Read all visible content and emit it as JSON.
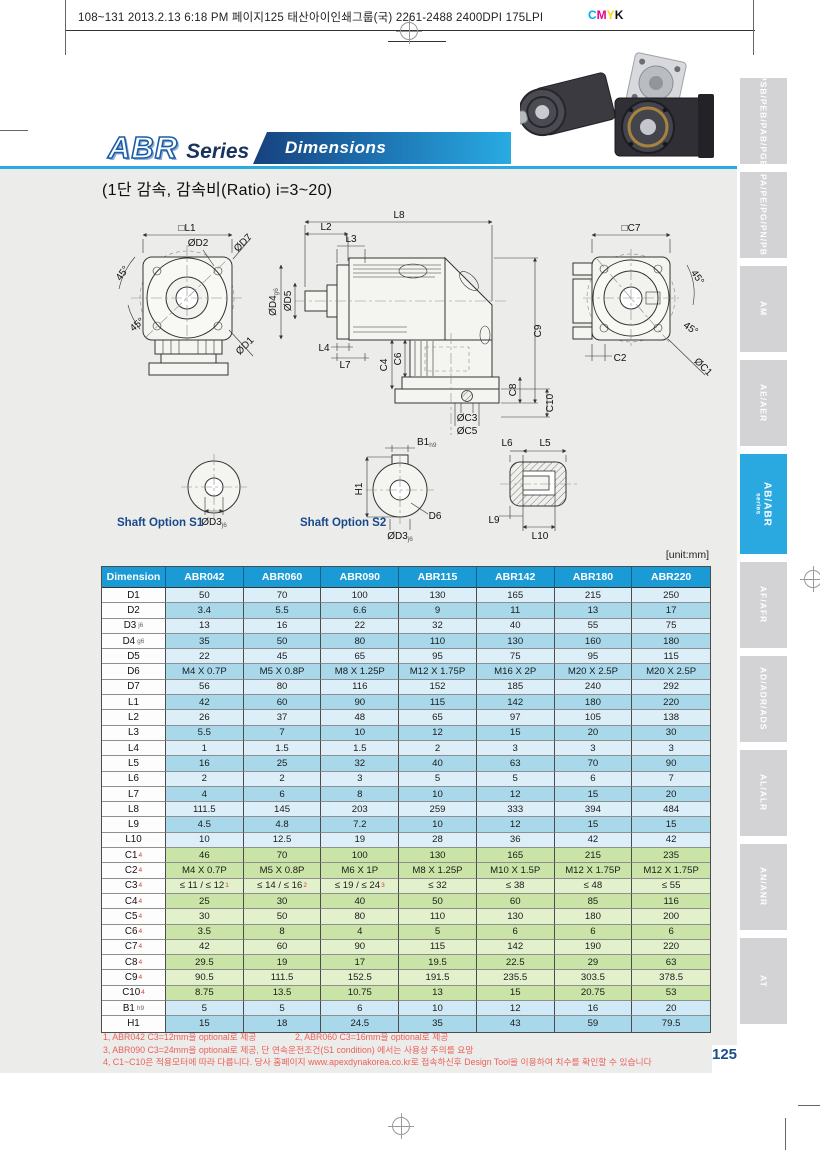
{
  "print_header": {
    "text": "108~131  2013.2.13 6:18 PM  페이지125   태산아이인쇄그룹(국) 2261-2488  2400DPI 175LPI",
    "cmyk": [
      "C",
      "M",
      "Y",
      "K"
    ]
  },
  "header": {
    "series_code": "ABR",
    "series_word": "Series",
    "banner_label": "Dimensions",
    "subtitle": "(1단 감속, 감속비(Ratio) i=3~20)"
  },
  "drawings": {
    "front": {
      "l1": "□L1",
      "d2": "ØD2",
      "d7": "ØD7",
      "d1": "ØD1",
      "angle1": "45°",
      "angle2": "45°"
    },
    "side": {
      "l8": "L8",
      "l2": "L2",
      "l3": "L3",
      "d4": "ØD4",
      "d4_tol": "g6",
      "d5": "ØD5",
      "l4": "L4",
      "l7": "L7",
      "c4": "C4",
      "c6": "C6",
      "c9": "C9",
      "c8": "C8",
      "c10": "C10",
      "c3": "ØC3",
      "c5": "ØC5"
    },
    "rear": {
      "c7": "□C7",
      "angle1": "45°",
      "angle2": "45°",
      "c1": "ØC1",
      "c2": "C2"
    },
    "shaft_s1": {
      "title": "Shaft Option S1",
      "d3": "ØD3",
      "d3_tol": "j6"
    },
    "shaft_s2": {
      "title": "Shaft Option S2",
      "b1": "B1",
      "b1_tol": "h9",
      "h1": "H1",
      "d6": "D6",
      "d3": "ØD3",
      "d3_tol": "j6"
    },
    "shaft_side": {
      "l6": "L6",
      "l5": "L5",
      "l9": "L9",
      "l10": "L10"
    }
  },
  "table": {
    "unit_note": "[unit:mm]",
    "columns": [
      "Dimension",
      "ABR042",
      "ABR060",
      "ABR090",
      "ABR115",
      "ABR142",
      "ABR180",
      "ABR220"
    ],
    "rows": [
      {
        "label": "D1",
        "tone": "bl",
        "values": [
          "50",
          "70",
          "100",
          "130",
          "165",
          "215",
          "250"
        ]
      },
      {
        "label": "D2",
        "tone": "bd",
        "values": [
          "3.4",
          "5.5",
          "6.6",
          "9",
          "11",
          "13",
          "17"
        ]
      },
      {
        "label": "D3",
        "label_sub": "j6",
        "tone": "bl",
        "values": [
          "13",
          "16",
          "22",
          "32",
          "40",
          "55",
          "75"
        ]
      },
      {
        "label": "D4",
        "label_sub": "g6",
        "tone": "bd",
        "values": [
          "35",
          "50",
          "80",
          "110",
          "130",
          "160",
          "180"
        ]
      },
      {
        "label": "D5",
        "tone": "bl",
        "values": [
          "22",
          "45",
          "65",
          "95",
          "75",
          "95",
          "115"
        ]
      },
      {
        "label": "D6",
        "tone": "bd",
        "values": [
          "M4 X 0.7P",
          "M5 X 0.8P",
          "M8 X 1.25P",
          "M12 X 1.75P",
          "M16 X 2P",
          "M20 X 2.5P",
          "M20 X 2.5P"
        ]
      },
      {
        "label": "D7",
        "tone": "bl",
        "values": [
          "56",
          "80",
          "116",
          "152",
          "185",
          "240",
          "292"
        ]
      },
      {
        "label": "L1",
        "tone": "bd",
        "values": [
          "42",
          "60",
          "90",
          "115",
          "142",
          "180",
          "220"
        ]
      },
      {
        "label": "L2",
        "tone": "bl",
        "values": [
          "26",
          "37",
          "48",
          "65",
          "97",
          "105",
          "138"
        ]
      },
      {
        "label": "L3",
        "tone": "bd",
        "values": [
          "5.5",
          "7",
          "10",
          "12",
          "15",
          "20",
          "30"
        ]
      },
      {
        "label": "L4",
        "tone": "bl",
        "values": [
          "1",
          "1.5",
          "1.5",
          "2",
          "3",
          "3",
          "3"
        ]
      },
      {
        "label": "L5",
        "tone": "bd",
        "values": [
          "16",
          "25",
          "32",
          "40",
          "63",
          "70",
          "90"
        ]
      },
      {
        "label": "L6",
        "tone": "bl",
        "values": [
          "2",
          "2",
          "3",
          "5",
          "5",
          "6",
          "7"
        ]
      },
      {
        "label": "L7",
        "tone": "bd",
        "values": [
          "4",
          "6",
          "8",
          "10",
          "12",
          "15",
          "20"
        ]
      },
      {
        "label": "L8",
        "tone": "bl",
        "values": [
          "111.5",
          "145",
          "203",
          "259",
          "333",
          "394",
          "484"
        ]
      },
      {
        "label": "L9",
        "tone": "bd",
        "values": [
          "4.5",
          "4.8",
          "7.2",
          "10",
          "12",
          "15",
          "15"
        ]
      },
      {
        "label": "L10",
        "tone": "bl",
        "values": [
          "10",
          "12.5",
          "19",
          "28",
          "36",
          "42",
          "42"
        ]
      },
      {
        "label": "C1",
        "label_sup": "4",
        "tone": "gd",
        "values": [
          "46",
          "70",
          "100",
          "130",
          "165",
          "215",
          "235"
        ]
      },
      {
        "label": "C2",
        "label_sup": "4",
        "tone": "gd",
        "values": [
          "M4 X 0.7P",
          "M5 X 0.8P",
          "M6 X 1P",
          "M8 X 1.25P",
          "M10 X 1.5P",
          "M12 X 1.75P",
          "M12 X 1.75P"
        ]
      },
      {
        "label": "C3",
        "label_sup": "4",
        "tone": "gl",
        "values": [
          "≤ 11 / ≤ 12^1",
          "≤ 14 / ≤ 16^2",
          "≤ 19 / ≤ 24^3",
          "≤ 32",
          "≤ 38",
          "≤ 48",
          "≤ 55"
        ]
      },
      {
        "label": "C4",
        "label_sup": "4",
        "tone": "gd",
        "values": [
          "25",
          "30",
          "40",
          "50",
          "60",
          "85",
          "116"
        ]
      },
      {
        "label": "C5",
        "label_sup": "4",
        "tone": "gl",
        "values": [
          "30",
          "50",
          "80",
          "110",
          "130",
          "180",
          "200"
        ]
      },
      {
        "label": "C6",
        "label_sup": "4",
        "tone": "gd",
        "values": [
          "3.5",
          "8",
          "4",
          "5",
          "6",
          "6",
          "6"
        ]
      },
      {
        "label": "C7",
        "label_sup": "4",
        "tone": "gl",
        "values": [
          "42",
          "60",
          "90",
          "115",
          "142",
          "190",
          "220"
        ]
      },
      {
        "label": "C8",
        "label_sup": "4",
        "tone": "gd",
        "values": [
          "29.5",
          "19",
          "17",
          "19.5",
          "22.5",
          "29",
          "63"
        ]
      },
      {
        "label": "C9",
        "label_sup": "4",
        "tone": "gl",
        "values": [
          "90.5",
          "111.5",
          "152.5",
          "191.5",
          "235.5",
          "303.5",
          "378.5"
        ]
      },
      {
        "label": "C10",
        "label_sup": "4",
        "tone": "gd",
        "values": [
          "8.75",
          "13.5",
          "10.75",
          "13",
          "15",
          "20.75",
          "53"
        ]
      },
      {
        "label": "B1",
        "label_sub": "h9",
        "tone": "bl2",
        "values": [
          "5",
          "5",
          "6",
          "10",
          "12",
          "16",
          "20"
        ]
      },
      {
        "label": "H1",
        "tone": "bd",
        "values": [
          "15",
          "18",
          "24.5",
          "35",
          "43",
          "59",
          "79.5"
        ]
      }
    ]
  },
  "footnotes": [
    "1, ABR042  C3=12mm을 optional로 제공",
    "2, ABR060  C3=16mm을 optional로 제공",
    "3, ABR090  C3=24mm을 optional로 제공, 단 연속운전조건(S1 condition) 에서는 사용상 주의를 요망",
    "4, C1~C10은 적용모터에 따라 다릅니다. 당사 홈페이지 www.apexdynakorea.co.kr로 접속하신후 Design Tool을 이용하여 치수를 확인할 수 있습니다"
  ],
  "sidebar": {
    "tabs": [
      {
        "label": "PSB/PEB/PAB/PGB",
        "active": false
      },
      {
        "label": "PA/PE/PG/PN/PB",
        "active": false
      },
      {
        "label": "AM",
        "active": false
      },
      {
        "label": "AE/AER",
        "active": false
      },
      {
        "label": "AB/ABR",
        "sublabel": "series",
        "active": true
      },
      {
        "label": "AF/AFR",
        "active": false
      },
      {
        "label": "AD/ADR/ADS",
        "active": false
      },
      {
        "label": "AL/ALR",
        "active": false
      },
      {
        "label": "AN/ANR",
        "active": false
      },
      {
        "label": "AT",
        "active": false
      }
    ]
  },
  "page_number": "125",
  "colors": {
    "accent_cyan": "#29abe2",
    "table_header_blue": "#1b9bd5",
    "row_blue_dark": "#a9d8ea",
    "row_blue_light": "#dceef7",
    "row_green_dark": "#c9e4a6",
    "row_green_light": "#e2f0cb",
    "footnote_red": "#ea625c",
    "sidebar_gray": "#d3d3d5",
    "page_number_blue": "#1c4e8e"
  }
}
